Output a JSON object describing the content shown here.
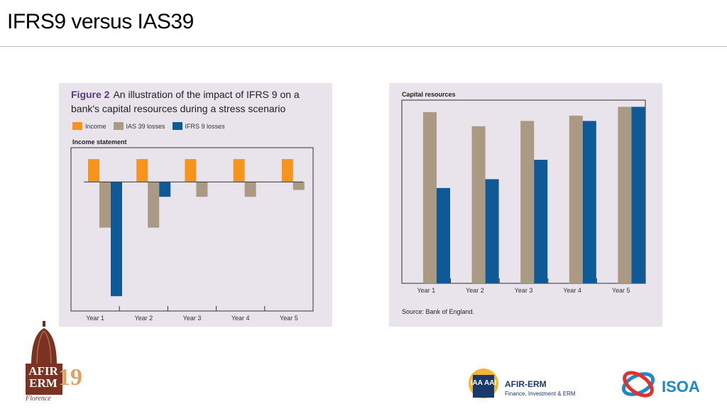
{
  "slide": {
    "title": "IFRS9 versus IAS39"
  },
  "left_figure": {
    "figure_number": "Figure 2",
    "title": "An illustration of the impact of IFRS 9 on a bank's capital resources during a stress scenario",
    "chart_label": "Income statement"
  },
  "right_figure": {
    "chart_label": "Capital resources",
    "source": "Source: Bank of England."
  },
  "logos": {
    "afir_text": "AFIR ERM",
    "afir_number": "19",
    "afir_city": "Florence",
    "iaa_text": "IAA AAI",
    "iaa_title": "AFIR-ERM",
    "iaa_subtitle": "Finance, Investment & ERM",
    "isoa": "ISOA"
  },
  "colors": {
    "income": "#f7941d",
    "ias39": "#aa9a84",
    "ifrs9": "#0e5a96",
    "panel_bg": "#e9e3ec"
  },
  "chart_data": [
    {
      "type": "bar",
      "title": "Income statement",
      "categories": [
        "Year 1",
        "Year 2",
        "Year 3",
        "Year 4",
        "Year 5"
      ],
      "series": [
        {
          "name": "Income",
          "color": "#f7941d",
          "values": [
            1,
            1,
            1,
            1,
            1
          ]
        },
        {
          "name": "IAS 39 losses",
          "color": "#aa9a84",
          "values": [
            -2,
            -2,
            -0.65,
            -0.65,
            -0.35
          ]
        },
        {
          "name": "IFRS 9 losses",
          "color": "#0e5a96",
          "values": [
            -5,
            -0.65,
            0,
            0,
            0
          ]
        }
      ],
      "ylim": [
        -5.4,
        1.25
      ],
      "legend": "top-left",
      "grid": false
    },
    {
      "type": "bar",
      "title": "Capital resources",
      "categories": [
        "Year 1",
        "Year 2",
        "Year 3",
        "Year 4",
        "Year 5"
      ],
      "series": [
        {
          "name": "IAS 39 losses",
          "color": "#aa9a84",
          "values": [
            9.7,
            8.9,
            9.2,
            9.5,
            10
          ]
        },
        {
          "name": "IFRS 9 losses",
          "color": "#0e5a96",
          "values": [
            5.4,
            5.9,
            7.0,
            9.2,
            10
          ]
        }
      ],
      "ylim": [
        0,
        10.3
      ],
      "grid": false
    }
  ]
}
